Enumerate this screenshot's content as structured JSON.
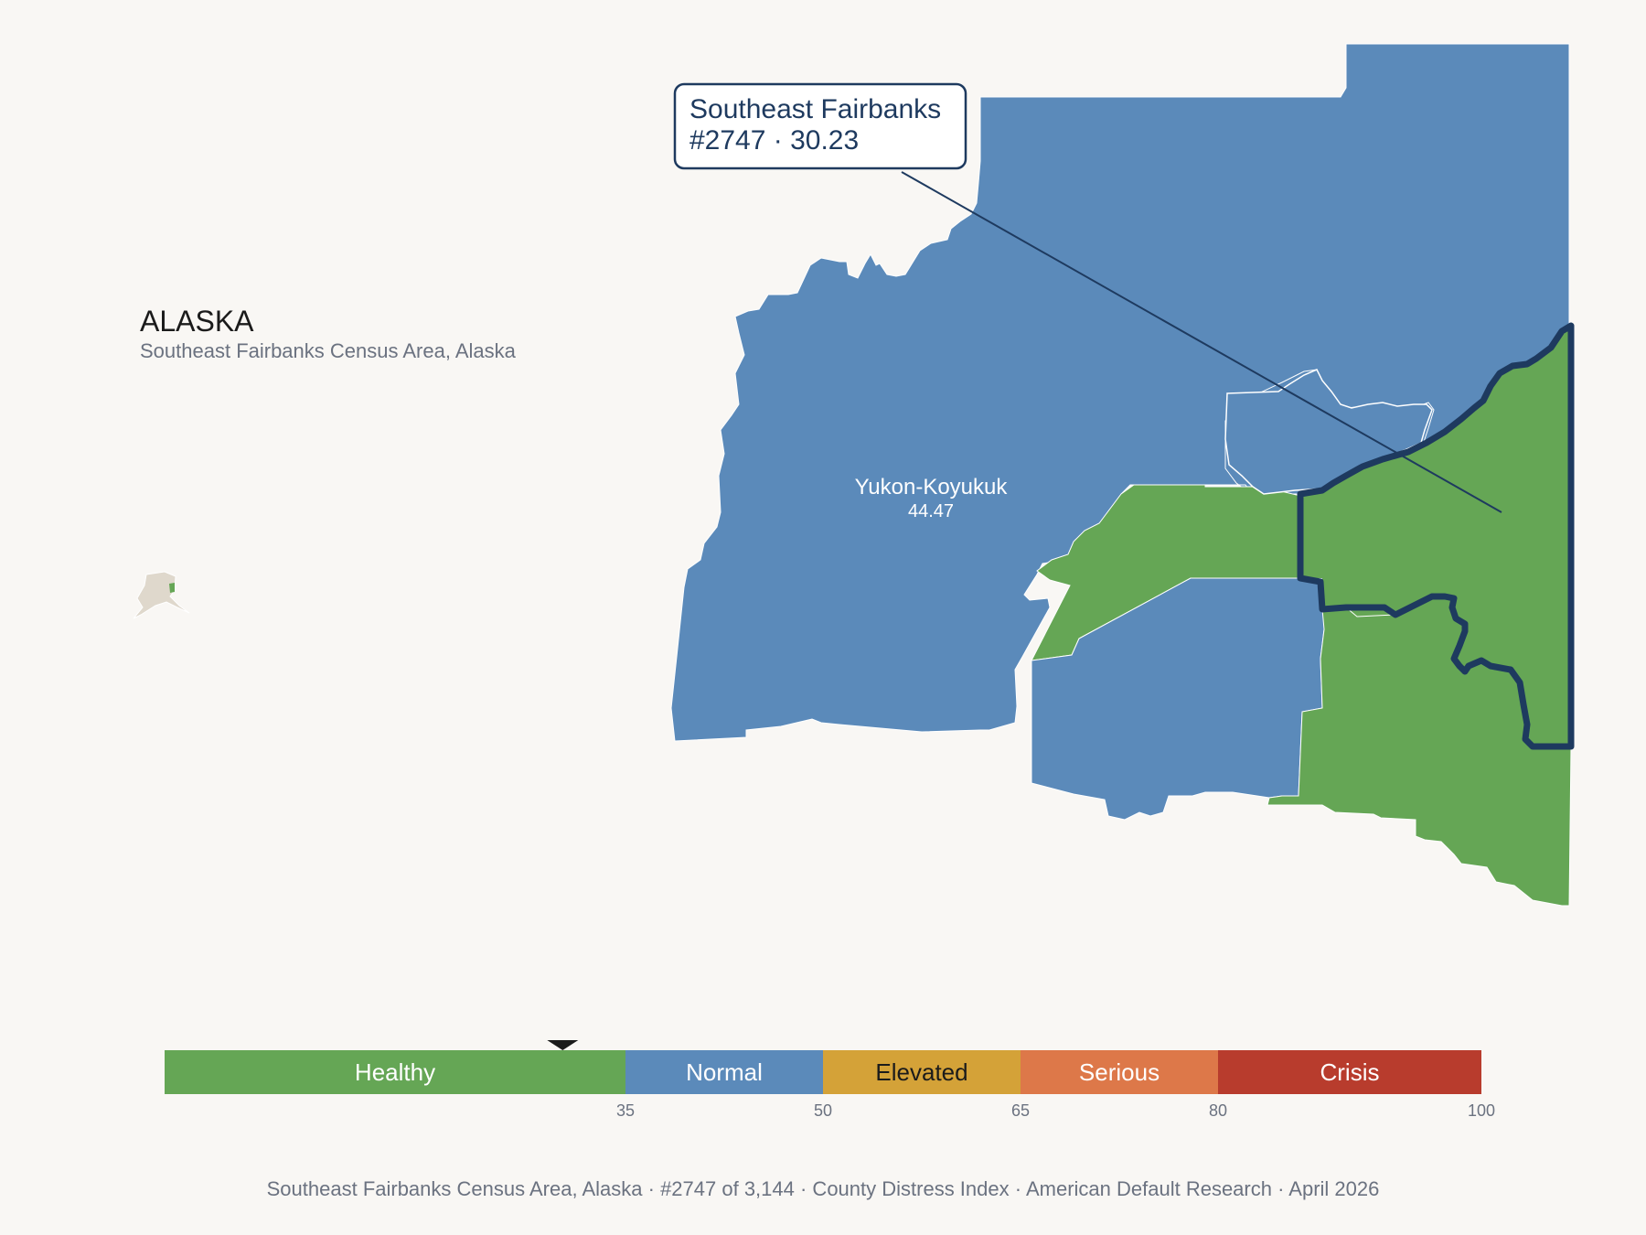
{
  "header": {
    "state": "ALASKA",
    "subtitle": "Southeast Fairbanks Census Area, Alaska"
  },
  "callout": {
    "line1": "Southeast Fairbanks",
    "line2": "#2747 · 30.23"
  },
  "map": {
    "labeled_county": {
      "name": "Yukon-Koyukuk",
      "value": "44.47"
    },
    "colors": {
      "healthy": "#65a655",
      "normal": "#5b8aba",
      "highlight_outline": "#1e3a5f",
      "background": "#f9f7f4"
    },
    "selected_value": 30.23
  },
  "legend": {
    "bands": [
      {
        "label": "Healthy",
        "from": 0,
        "to": 35,
        "color": "#65a655",
        "text_color": "#ffffff"
      },
      {
        "label": "Normal",
        "from": 35,
        "to": 50,
        "color": "#5b8aba",
        "text_color": "#ffffff"
      },
      {
        "label": "Elevated",
        "from": 50,
        "to": 65,
        "color": "#d4a238",
        "text_color": "#1b1b1b"
      },
      {
        "label": "Serious",
        "from": 65,
        "to": 80,
        "color": "#dd7849",
        "text_color": "#ffffff"
      },
      {
        "label": "Crisis",
        "from": 80,
        "to": 100,
        "color": "#b83c2d",
        "text_color": "#ffffff"
      }
    ],
    "ticks": [
      "35",
      "50",
      "65",
      "80",
      "100"
    ]
  },
  "footer": {
    "text": "Southeast Fairbanks Census Area, Alaska  ·  #2747 of 3,144  ·  County Distress Index  ·  American Default Research  ·  April 2026"
  }
}
